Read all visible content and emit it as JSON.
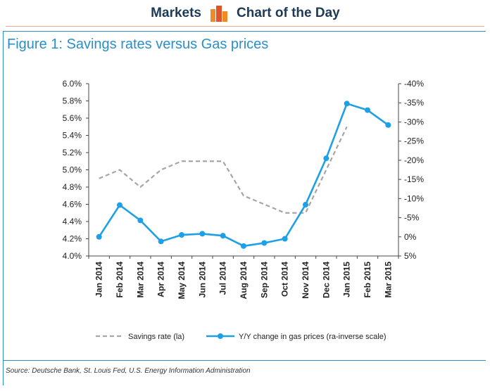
{
  "header": {
    "left_label": "Markets",
    "right_label": "Chart of the Day",
    "logo_icon": "bar-logo-icon"
  },
  "figure_title": "Figure 1: Savings rates versus Gas prices",
  "source": "Source: Deutsche Bank, St. Louis Fed, U.S. Energy Information Administration",
  "colors": {
    "savings": "#a6a6a6",
    "gas": "#1ea0e6",
    "accent": "#2a8fc8",
    "logo_orange": "#f08a24",
    "logo_red": "#e2532c"
  },
  "chart_data": {
    "type": "line",
    "categories": [
      "Jan 2014",
      "Feb 2014",
      "Mar 2014",
      "Apr 2014",
      "May 2014",
      "Jun 2014",
      "Jul 2014",
      "Aug 2014",
      "Sep 2014",
      "Oct 2014",
      "Nov 2014",
      "Dec 2014",
      "Jan 2015",
      "Feb 2015",
      "Mar 2015"
    ],
    "series": [
      {
        "name": "Savings rate (la)",
        "axis": "left",
        "style": "dashed",
        "values": [
          4.9,
          5.0,
          4.8,
          5.0,
          5.1,
          5.1,
          5.1,
          4.7,
          4.6,
          4.5,
          4.5,
          5.0,
          5.5,
          null,
          null
        ]
      },
      {
        "name": "Y/Y change in gas prices (ra-inverse scale)",
        "axis": "right",
        "style": "solid-markers",
        "values": [
          0.0,
          -8.3,
          -4.3,
          1.2,
          -0.5,
          -0.8,
          -0.3,
          2.4,
          1.6,
          0.5,
          -8.4,
          -20.5,
          -34.8,
          -33.1,
          -29.2
        ]
      }
    ],
    "left_axis": {
      "ylim": [
        4.0,
        6.0
      ],
      "ticks": [
        "6.0%",
        "5.8%",
        "5.6%",
        "5.4%",
        "5.2%",
        "5.0%",
        "4.8%",
        "4.6%",
        "4.4%",
        "4.2%",
        "4.0%"
      ]
    },
    "right_axis": {
      "ylim": [
        5,
        -40
      ],
      "inverse": true,
      "ticks": [
        "-40%",
        "-35%",
        "-30%",
        "-25%",
        "-20%",
        "-15%",
        "-10%",
        "-5%",
        "0%",
        "5%"
      ]
    },
    "grid": false,
    "legend": "bottom"
  }
}
